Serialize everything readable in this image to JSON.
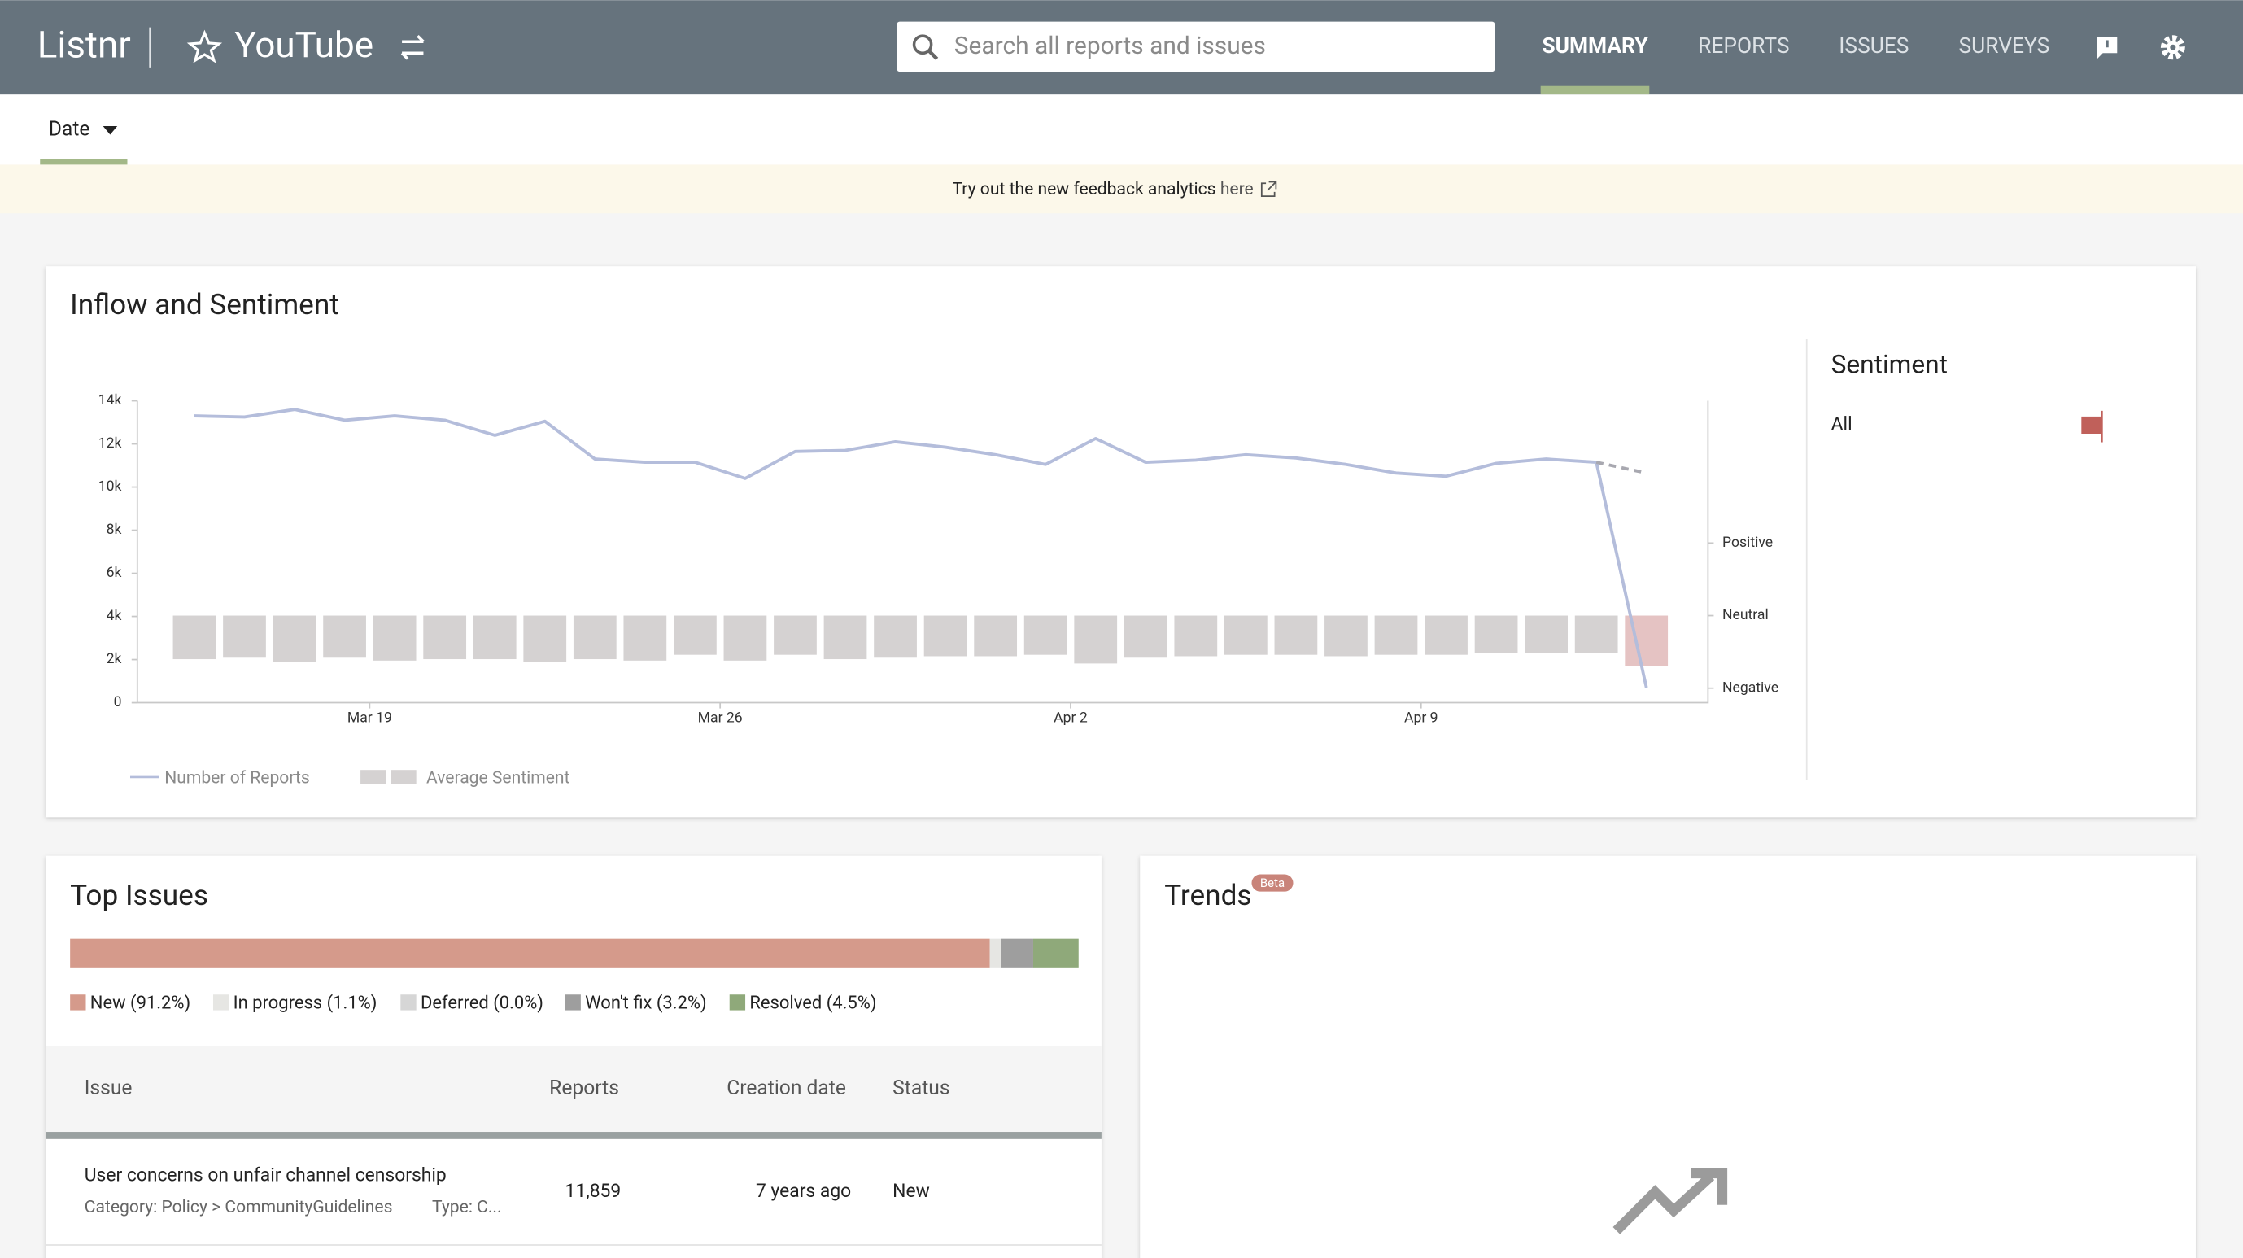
{
  "header": {
    "app": "Listnr",
    "product": "YouTube",
    "search_placeholder": "Search all reports and issues",
    "tabs": [
      "SUMMARY",
      "REPORTS",
      "ISSUES",
      "SURVEYS"
    ]
  },
  "filter": "Date",
  "banner": {
    "text": "Try out the new feedback analytics",
    "link": "here"
  },
  "inflow_chart": {
    "type": "line",
    "title": "Inflow and Sentiment",
    "x": [
      15,
      16,
      17,
      18,
      19,
      20,
      21,
      22,
      23,
      24,
      25,
      26,
      27,
      28,
      29,
      30,
      31,
      32,
      33,
      34,
      35,
      36,
      37,
      38,
      39,
      40,
      41,
      42,
      43,
      44
    ],
    "xlim": [
      13.86,
      45.23
    ],
    "xticks": [
      {
        "value": 18.5,
        "label": "Mar 19"
      },
      {
        "value": 25.5,
        "label": "Mar 26"
      },
      {
        "value": 32.5,
        "label": "Apr 2"
      },
      {
        "value": 39.5,
        "label": "Apr 9"
      }
    ],
    "ylim": [
      0,
      14000
    ],
    "yticks": [
      {
        "value": 0,
        "label": "0"
      },
      {
        "value": 2000,
        "label": "2k"
      },
      {
        "value": 4000,
        "label": "4k"
      },
      {
        "value": 6000,
        "label": "6k"
      },
      {
        "value": 8000,
        "label": "8k"
      },
      {
        "value": 10000,
        "label": "10k"
      },
      {
        "value": 12000,
        "label": "12k"
      },
      {
        "value": 14000,
        "label": "14k"
      }
    ],
    "y2lim": [
      -1.2,
      2.96
    ],
    "y2ticks": [
      {
        "value": -1,
        "label": "Negative"
      },
      {
        "value": 0,
        "label": "Neutral"
      },
      {
        "value": 1,
        "label": "Positive"
      }
    ],
    "series": [
      {
        "name": "Number of Reports",
        "color": "#b4bddb",
        "values": [
          13300,
          13250,
          13600,
          13100,
          13300,
          13100,
          12400,
          13050,
          11300,
          11150,
          11150,
          10400,
          11650,
          11700,
          12100,
          11850,
          11500,
          11050,
          12250,
          11150,
          11250,
          11500,
          11350,
          11050,
          10650,
          10500,
          11100,
          11300,
          11150,
          700
        ]
      },
      {
        "name": "Average Sentiment",
        "type": "bar",
        "axis": "y2",
        "color": "#d5d2d2",
        "values": [
          -0.6,
          -0.58,
          -0.64,
          -0.58,
          -0.62,
          -0.6,
          -0.6,
          -0.64,
          -0.6,
          -0.62,
          -0.54,
          -0.62,
          -0.54,
          -0.6,
          -0.58,
          -0.56,
          -0.56,
          -0.54,
          -0.66,
          -0.58,
          -0.56,
          -0.54,
          -0.54,
          -0.56,
          -0.54,
          -0.54,
          -0.52,
          -0.52,
          -0.52,
          -0.7
        ],
        "colors": [
          "#d5d2d2",
          "#d5d2d2",
          "#d5d2d2",
          "#d5d2d2",
          "#d5d2d2",
          "#d5d2d2",
          "#d5d2d2",
          "#d5d2d2",
          "#d5d2d2",
          "#d5d2d2",
          "#d5d2d2",
          "#d5d2d2",
          "#d5d2d2",
          "#d5d2d2",
          "#d5d2d2",
          "#d5d2d2",
          "#d5d2d2",
          "#d5d2d2",
          "#d5d2d2",
          "#d5d2d2",
          "#d5d2d2",
          "#d5d2d2",
          "#d5d2d2",
          "#d5d2d2",
          "#d5d2d2",
          "#d5d2d2",
          "#d5d2d2",
          "#d5d2d2",
          "#d5d2d2",
          "#e5c3c3"
        ]
      }
    ],
    "projected_values": [
      null,
      null,
      null,
      null,
      null,
      null,
      null,
      null,
      null,
      null,
      null,
      null,
      null,
      null,
      null,
      null,
      null,
      null,
      null,
      null,
      null,
      null,
      null,
      null,
      null,
      null,
      null,
      null,
      11150,
      10650
    ]
  },
  "sentiment_panel": {
    "title": "Sentiment",
    "rows": [
      "All"
    ]
  },
  "top_issues": {
    "title": "Top Issues",
    "status_breakdown": [
      {
        "label": "New (91.2%)",
        "value": 91.2,
        "color": "#d59a8b"
      },
      {
        "label": "In progress (1.1%)",
        "value": 1.1,
        "color": "#e6e6e3"
      },
      {
        "label": "Deferred (0.0%)",
        "value": 0.0,
        "color": "#d6d6d6"
      },
      {
        "label": "Won't fix (3.2%)",
        "value": 3.2,
        "color": "#9e9e9e"
      },
      {
        "label": "Resolved (4.5%)",
        "value": 4.5,
        "color": "#8fa97a"
      }
    ],
    "table": {
      "columns": [
        "Issue",
        "Reports",
        "Creation date",
        "Status"
      ],
      "rows": [
        {
          "issue": "User concerns on unfair channel censorship",
          "category": "Category: Policy > CommunityGuidelines",
          "type": "Type: C...",
          "reports": "11,859",
          "created": "7 years ago",
          "status": "New"
        }
      ]
    }
  },
  "trends": {
    "title": "Trends",
    "badge": "Beta"
  }
}
